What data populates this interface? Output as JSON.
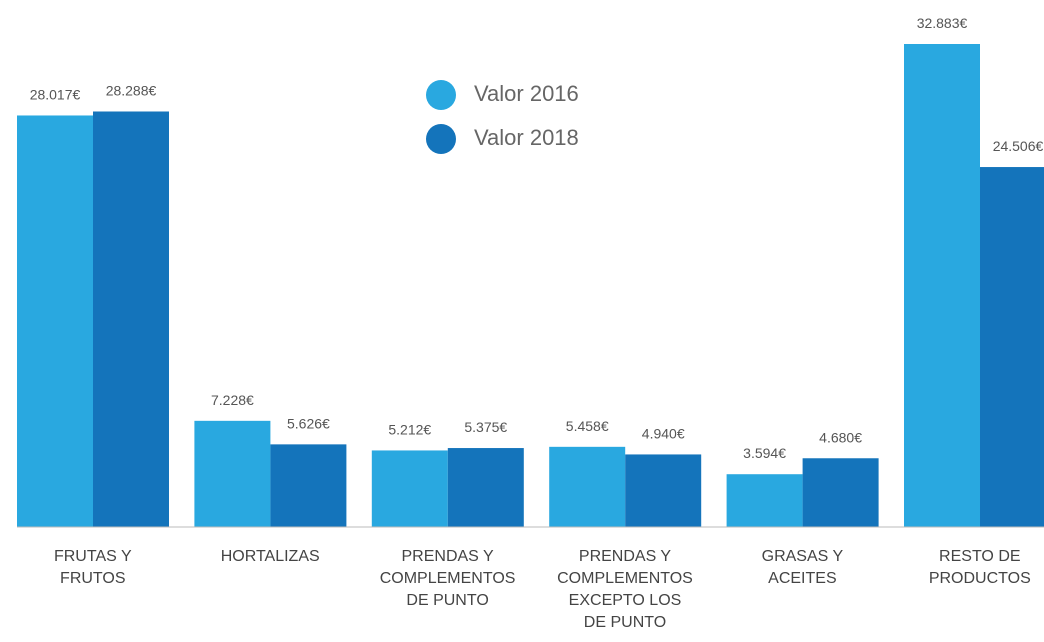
{
  "chart_data": {
    "type": "bar",
    "categories": [
      "FRUTAS Y\nFRUTOS",
      "HORTALIZAS",
      "PRENDAS Y\nCOMPLEMENTOS\nDE PUNTO",
      "PRENDAS Y\nCOMPLEMENTOS\nEXCEPTO LOS\nDE PUNTO",
      "GRASAS Y\nACEITES",
      "RESTO DE\nPRODUCTOS"
    ],
    "series": [
      {
        "name": "Valor 2016",
        "color": "#29a8e0",
        "values": [
          28017,
          7228,
          5212,
          5458,
          3594,
          32883
        ],
        "value_labels": [
          "28.017€",
          "7.228€",
          "5.212€",
          "5.458€",
          "3.594€",
          "32.883€"
        ]
      },
      {
        "name": "Valor 2018",
        "color": "#1474bb",
        "values": [
          28288,
          5626,
          5375,
          4940,
          4680,
          24506
        ],
        "value_labels": [
          "28.288€",
          "5.626€",
          "5.375€",
          "4.940€",
          "4.680€",
          "24.506€"
        ]
      }
    ],
    "legend": "top-center"
  }
}
